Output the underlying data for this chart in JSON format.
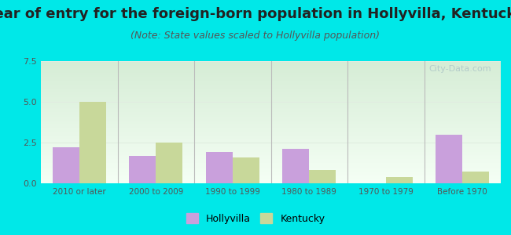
{
  "title": "Year of entry for the foreign-born population in Hollyvilla, Kentucky",
  "subtitle": "(Note: State values scaled to Hollyvilla population)",
  "categories": [
    "2010 or later",
    "2000 to 2009",
    "1990 to 1999",
    "1980 to 1989",
    "1970 to 1979",
    "Before 1970"
  ],
  "hollyvilla_values": [
    2.2,
    1.7,
    1.9,
    2.1,
    0.0,
    3.0
  ],
  "kentucky_values": [
    5.0,
    2.5,
    1.6,
    0.8,
    0.4,
    0.7
  ],
  "hollyvilla_color": "#c9a0dc",
  "kentucky_color": "#c8d89a",
  "background_color": "#00e8e8",
  "grad_top": "#d6edd6",
  "grad_bottom": "#f5fff5",
  "ylim": [
    0,
    7.5
  ],
  "yticks": [
    0,
    2.5,
    5,
    7.5
  ],
  "bar_width": 0.35,
  "legend_hollyvilla": "Hollyvilla",
  "legend_kentucky": "Kentucky",
  "title_fontsize": 13,
  "subtitle_fontsize": 9,
  "watermark": "City-Data.com",
  "title_color": "#222222",
  "subtitle_color": "#555555",
  "tick_color": "#555555",
  "divider_color": "#bbbbbb",
  "grid_color": "#e0ece0"
}
